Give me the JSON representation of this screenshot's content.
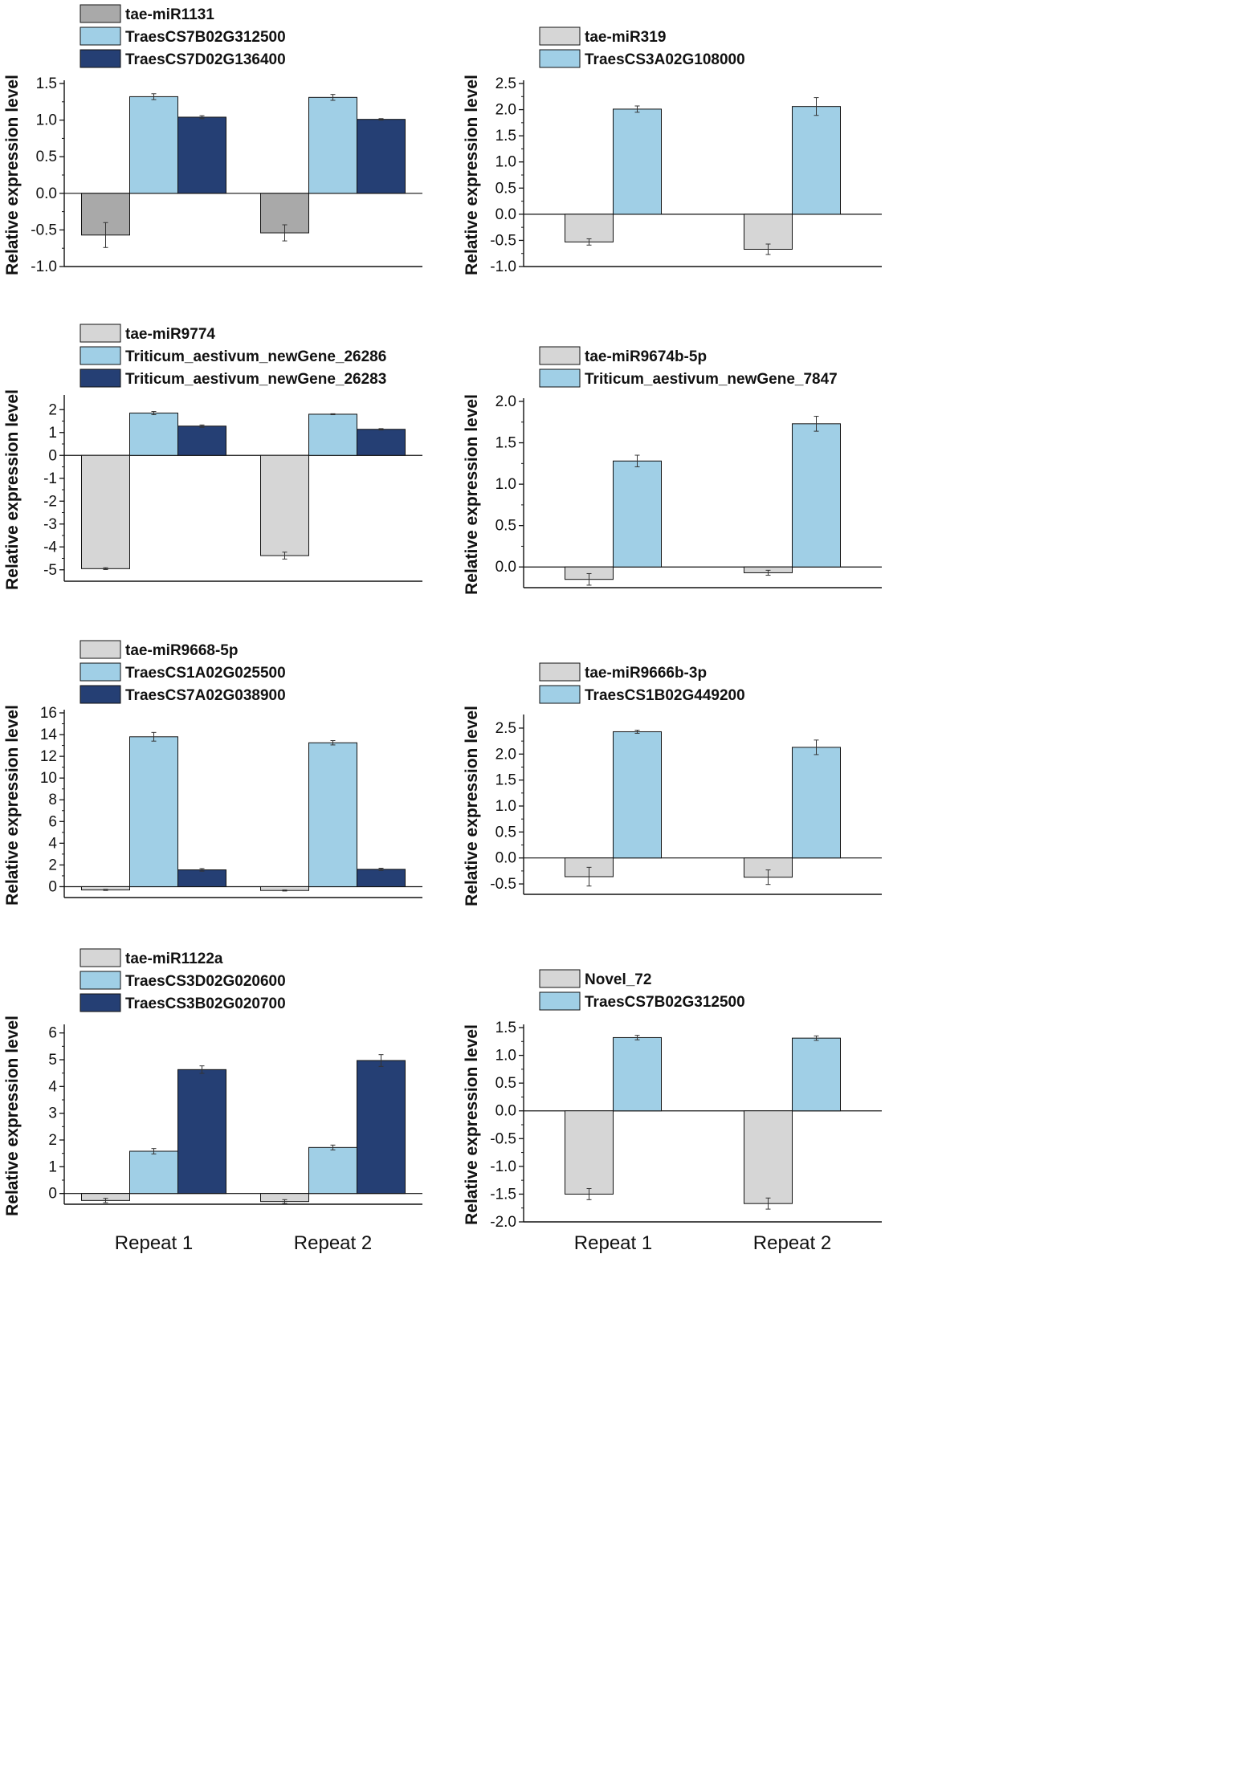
{
  "colors": {
    "mirna_gray_dark": "#a9a9a9",
    "mirna_gray_light": "#d6d6d6",
    "gene_light_blue": "#a0cfe6",
    "gene_dark_blue": "#253f74",
    "axis": "#111111"
  },
  "chart_data": [
    {
      "type": "bar",
      "ylabel": "Relative expression level",
      "categories": [
        "Repeat 1",
        "Repeat 2"
      ],
      "ylim": [
        -1.0,
        1.5
      ],
      "yticks": [
        -1.0,
        -0.5,
        0.0,
        0.5,
        1.0,
        1.5
      ],
      "ytick_labels": [
        "-1.0",
        "-0.5",
        "0.0",
        "0.5",
        "1.0",
        "1.5"
      ],
      "legend_position": "top-left",
      "series": [
        {
          "name": "tae-miR1131",
          "color": "#a9a9a9",
          "values": [
            -0.57,
            -0.54
          ],
          "errors": [
            0.17,
            0.11
          ]
        },
        {
          "name": "TraesCS7B02G312500",
          "color": "#a0cfe6",
          "values": [
            1.32,
            1.31
          ],
          "errors": [
            0.04,
            0.04
          ]
        },
        {
          "name": "TraesCS7D02G136400",
          "color": "#253f74",
          "values": [
            1.04,
            1.01
          ],
          "errors": [
            0.02,
            0.01
          ]
        }
      ]
    },
    {
      "type": "bar",
      "ylabel": "Relative expression level",
      "categories": [
        "Repeat 1",
        "Repeat 2"
      ],
      "ylim": [
        -1.0,
        2.5
      ],
      "yticks": [
        -1.0,
        -0.5,
        0.0,
        0.5,
        1.0,
        1.5,
        2.0,
        2.5
      ],
      "ytick_labels": [
        "-1.0",
        "-0.5",
        "0.0",
        "0.5",
        "1.0",
        "1.5",
        "2.0",
        "2.5"
      ],
      "legend_position": "top-left",
      "series": [
        {
          "name": "tae-miR319",
          "color": "#d6d6d6",
          "values": [
            -0.53,
            -0.67
          ],
          "errors": [
            0.06,
            0.1
          ]
        },
        {
          "name": "TraesCS3A02G108000",
          "color": "#a0cfe6",
          "values": [
            2.01,
            2.06
          ],
          "errors": [
            0.06,
            0.17
          ]
        }
      ]
    },
    {
      "type": "bar",
      "ylabel": "Relative expression level",
      "categories": [
        "Repeat 1",
        "Repeat 2"
      ],
      "ylim": [
        -5.5,
        2.5
      ],
      "yticks": [
        -5,
        -4,
        -3,
        -2,
        -1,
        0,
        1,
        2
      ],
      "ytick_labels": [
        "-5",
        "-4",
        "-3",
        "-2",
        "-1",
        "0",
        "1",
        "2"
      ],
      "legend_position": "top-left",
      "series": [
        {
          "name": "tae-miR9774",
          "color": "#d6d6d6",
          "values": [
            -4.95,
            -4.38
          ],
          "errors": [
            0.04,
            0.15
          ]
        },
        {
          "name": "Triticum_aestivum_newGene_26286",
          "color": "#a0cfe6",
          "values": [
            1.85,
            1.8
          ],
          "errors": [
            0.07,
            0.02
          ]
        },
        {
          "name": "Triticum_aestivum_newGene_26283",
          "color": "#253f74",
          "values": [
            1.28,
            1.14
          ],
          "errors": [
            0.05,
            0.03
          ]
        }
      ]
    },
    {
      "type": "bar",
      "ylabel": "Relative expression level",
      "categories": [
        "Repeat 1",
        "Repeat 2"
      ],
      "ylim": [
        -0.25,
        2.0
      ],
      "yticks": [
        0.0,
        0.5,
        1.0,
        1.5,
        2.0
      ],
      "ytick_labels": [
        "0.0",
        "0.5",
        "1.0",
        "1.5",
        "2.0"
      ],
      "legend_position": "top-left",
      "series": [
        {
          "name": "tae-miR9674b-5p",
          "color": "#d6d6d6",
          "values": [
            -0.15,
            -0.07
          ],
          "errors": [
            0.07,
            0.03
          ]
        },
        {
          "name": "Triticum_aestivum_newGene_7847",
          "color": "#a0cfe6",
          "values": [
            1.28,
            1.73
          ],
          "errors": [
            0.07,
            0.09
          ]
        }
      ]
    },
    {
      "type": "bar",
      "ylabel": "Relative expression level",
      "categories": [
        "Repeat 1",
        "Repeat 2"
      ],
      "ylim": [
        -1,
        16
      ],
      "yticks": [
        0,
        2,
        4,
        6,
        8,
        10,
        12,
        14,
        16
      ],
      "ytick_labels": [
        "0",
        "2",
        "4",
        "6",
        "8",
        "10",
        "12",
        "14",
        "16"
      ],
      "legend_position": "top-left",
      "series": [
        {
          "name": "tae-miR9668-5p",
          "color": "#d6d6d6",
          "values": [
            -0.3,
            -0.35
          ],
          "errors": [
            0.05,
            0.05
          ]
        },
        {
          "name": "TraesCS1A02G025500",
          "color": "#a0cfe6",
          "values": [
            13.8,
            13.25
          ],
          "errors": [
            0.4,
            0.2
          ]
        },
        {
          "name": "TraesCS7A02G038900",
          "color": "#253f74",
          "values": [
            1.55,
            1.6
          ],
          "errors": [
            0.12,
            0.1
          ]
        }
      ]
    },
    {
      "type": "bar",
      "ylabel": "Relative expression level",
      "categories": [
        "Repeat 1",
        "Repeat 2"
      ],
      "ylim": [
        -0.7,
        2.7
      ],
      "yticks": [
        -0.5,
        0.0,
        0.5,
        1.0,
        1.5,
        2.0,
        2.5
      ],
      "ytick_labels": [
        "-0.5",
        "0.0",
        "0.5",
        "1.0",
        "1.5",
        "2.0",
        "2.5"
      ],
      "legend_position": "top-left",
      "series": [
        {
          "name": "tae-miR9666b-3p",
          "color": "#d6d6d6",
          "values": [
            -0.36,
            -0.37
          ],
          "errors": [
            0.18,
            0.14
          ]
        },
        {
          "name": "TraesCS1B02G449200",
          "color": "#a0cfe6",
          "values": [
            2.43,
            2.13
          ],
          "errors": [
            0.03,
            0.14
          ]
        }
      ]
    },
    {
      "type": "bar",
      "ylabel": "Relative expression level",
      "categories": [
        "Repeat 1",
        "Repeat 2"
      ],
      "ylim": [
        -0.4,
        6.2
      ],
      "yticks": [
        0,
        1,
        2,
        3,
        4,
        5,
        6
      ],
      "ytick_labels": [
        "0",
        "1",
        "2",
        "3",
        "4",
        "5",
        "6"
      ],
      "legend_position": "top-left",
      "series": [
        {
          "name": "tae-miR1122a",
          "color": "#d6d6d6",
          "values": [
            -0.26,
            -0.3
          ],
          "errors": [
            0.08,
            0.07
          ]
        },
        {
          "name": "TraesCS3D02G020600",
          "color": "#a0cfe6",
          "values": [
            1.58,
            1.72
          ],
          "errors": [
            0.1,
            0.09
          ]
        },
        {
          "name": "TraesCS3B02G020700",
          "color": "#253f74",
          "values": [
            4.63,
            4.97
          ],
          "errors": [
            0.14,
            0.22
          ]
        }
      ]
    },
    {
      "type": "bar",
      "ylabel": "Relative expression level",
      "categories": [
        "Repeat 1",
        "Repeat 2"
      ],
      "ylim": [
        -2.0,
        1.5
      ],
      "yticks": [
        -2.0,
        -1.5,
        -1.0,
        -0.5,
        0.0,
        0.5,
        1.0,
        1.5
      ],
      "ytick_labels": [
        "-2.0",
        "-1.5",
        "-1.0",
        "-0.5",
        "0.0",
        "0.5",
        "1.0",
        "1.5"
      ],
      "legend_position": "top-left",
      "series": [
        {
          "name": "Novel_72",
          "color": "#d6d6d6",
          "values": [
            -1.5,
            -1.67
          ],
          "errors": [
            0.1,
            0.1
          ]
        },
        {
          "name": "TraesCS7B02G312500",
          "color": "#a0cfe6",
          "values": [
            1.32,
            1.31
          ],
          "errors": [
            0.04,
            0.04
          ]
        }
      ]
    }
  ]
}
